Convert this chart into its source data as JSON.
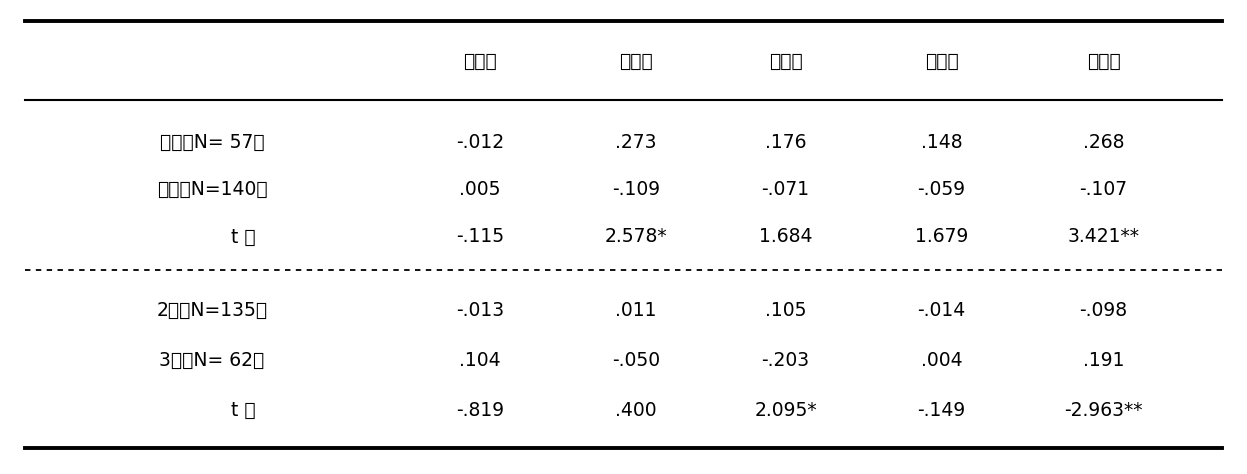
{
  "header_cols": [
    "無力感",
    "判断力",
    "知　識",
    "影響力",
    "正当性"
  ],
  "section1_rows": [
    [
      "男性（N= 57）",
      "-.012",
      ".273",
      ".176",
      ".148",
      ".268"
    ],
    [
      "女性（N=140）",
      ".005",
      "-.109",
      "-.071",
      "-.059",
      "-.107"
    ],
    [
      "t 値",
      "-.115",
      "2.578*",
      "1.684",
      "1.679",
      "3.421**"
    ]
  ],
  "section2_rows": [
    [
      "2年（N=135）",
      "-.013",
      ".011",
      ".105",
      "-.014",
      "-.098"
    ],
    [
      "3年（N= 62）",
      ".104",
      "-.050",
      "-.203",
      ".004",
      ".191"
    ],
    [
      "t 値",
      "-.819",
      ".400",
      "2.095*",
      "-.149",
      "-2.963**"
    ]
  ],
  "bg_color": "#ffffff",
  "text_color": "#000000",
  "fig_width": 12.47,
  "fig_height": 4.74
}
